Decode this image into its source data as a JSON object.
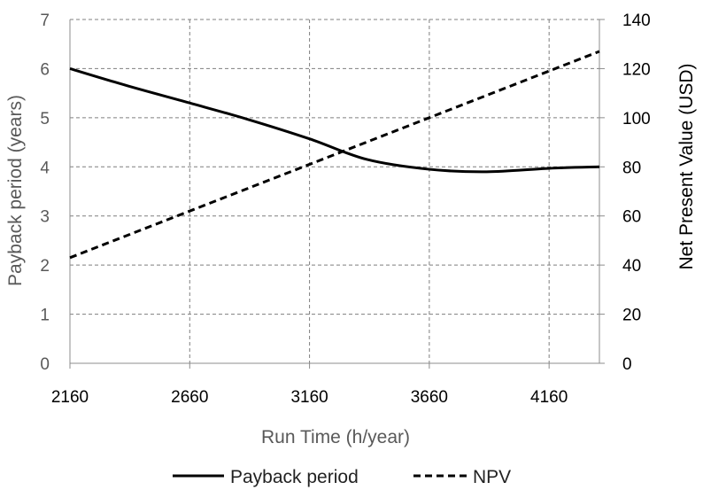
{
  "chart_data": {
    "type": "line",
    "x_ticks": [
      "2160",
      "2660",
      "3160",
      "3660",
      "4160"
    ],
    "xlabel": "Run Time (h/year)",
    "ylabel_left": "Payback period (years)",
    "ylabel_right": "Net Present  Value (USD)",
    "y_left_ticks": [
      "0",
      "1",
      "2",
      "3",
      "4",
      "5",
      "6",
      "7"
    ],
    "y_right_ticks": [
      "0",
      "20",
      "40",
      "60",
      "80",
      "100",
      "120",
      "140"
    ],
    "xlim": [
      2160,
      4370
    ],
    "ylim_left": [
      0,
      7
    ],
    "ylim_right": [
      0,
      140
    ],
    "grid": true,
    "legend_position": "bottom-center",
    "series": [
      {
        "name": "Payback period",
        "axis": "left",
        "style": "solid",
        "color": "#000000",
        "points": [
          [
            2160,
            6.0
          ],
          [
            2400,
            5.65
          ],
          [
            2660,
            5.3
          ],
          [
            2900,
            4.97
          ],
          [
            3160,
            4.57
          ],
          [
            3400,
            4.15
          ],
          [
            3660,
            3.95
          ],
          [
            3900,
            3.9
          ],
          [
            4160,
            3.97
          ],
          [
            4370,
            4.0
          ]
        ]
      },
      {
        "name": "NPV",
        "axis": "right",
        "style": "dashed",
        "color": "#000000",
        "points": [
          [
            2160,
            43
          ],
          [
            4370,
            127
          ]
        ]
      }
    ]
  },
  "colors": {
    "axis_text_left": "#595959",
    "axis_text_right": "#000000",
    "grid": "#7f7f7f",
    "axis_line": "#8c8c8c"
  }
}
